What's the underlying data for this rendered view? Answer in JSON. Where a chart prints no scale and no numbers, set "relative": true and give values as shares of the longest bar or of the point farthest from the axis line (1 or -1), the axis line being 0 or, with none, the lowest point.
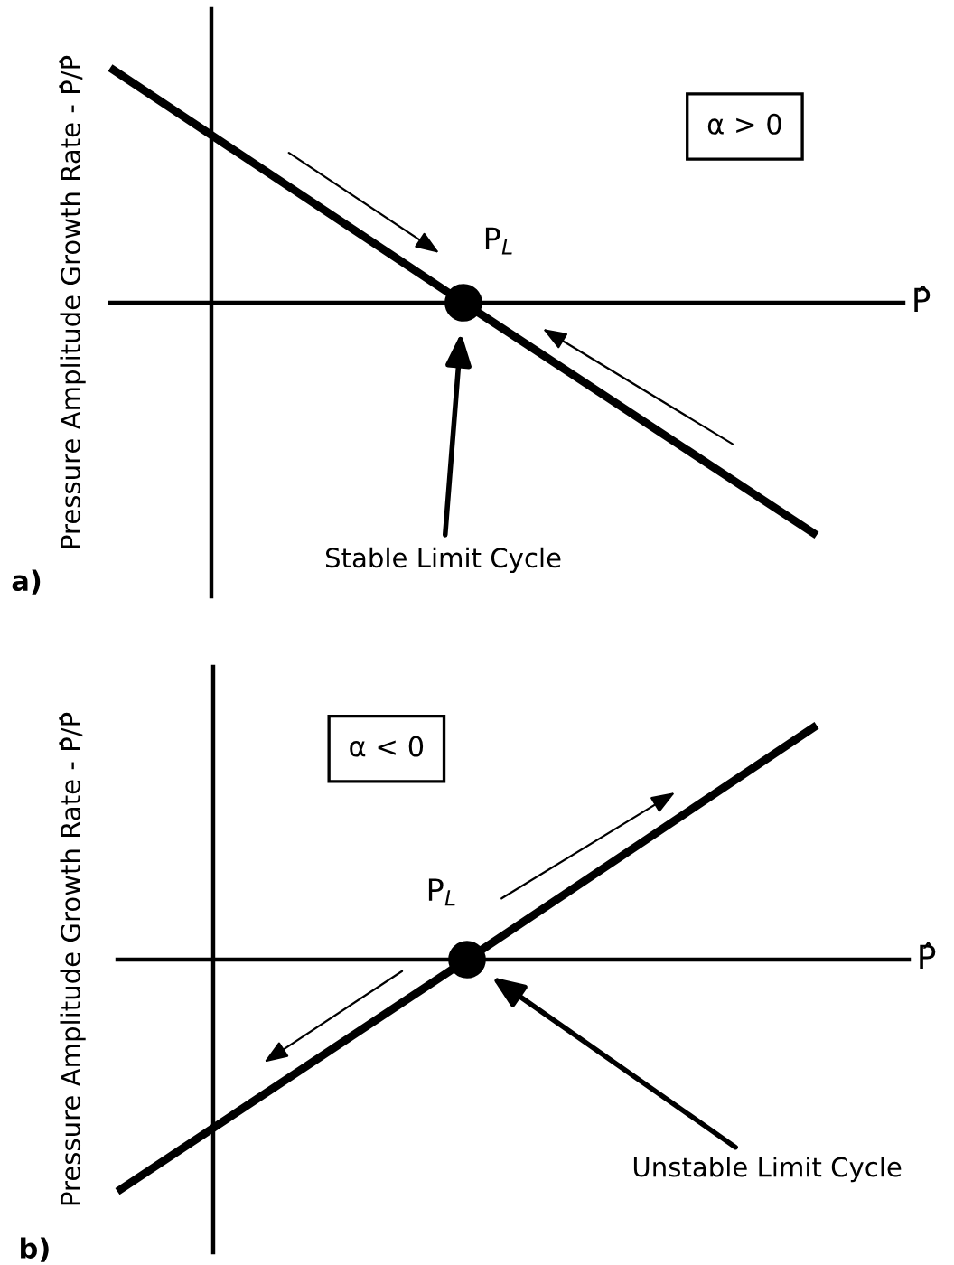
{
  "chart_data": [
    {
      "type": "line",
      "relative": true,
      "categories": [
        null,
        null,
        null
      ],
      "xlabel": "P̂",
      "ylabel": "Pressure Amplitude Growth Rate - P̂̇/P̂",
      "series": [
        {
          "color": "#000000",
          "values": [
            1,
            0,
            -0.99
          ]
        }
      ],
      "annotations": [
        "α > 0",
        "P$_{L}$",
        "Stable Limit Cycle",
        "a)"
      ]
    },
    {
      "type": "line",
      "relative": true,
      "categories": [
        null,
        null,
        null
      ],
      "xlabel": "P̂",
      "ylabel": "Pressure Amplitude Growth Rate - P̂̇/P̂",
      "series": [
        {
          "color": "#000000",
          "values": [
            -0.99,
            0,
            1
          ]
        }
      ],
      "annotations": [
        "α < 0",
        "P$_{L}$",
        "Unstable Limit Cycle",
        "b)"
      ]
    }
  ]
}
